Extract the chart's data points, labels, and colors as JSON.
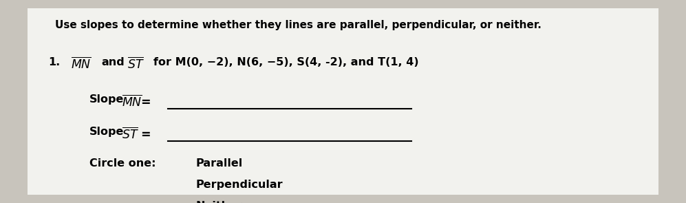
{
  "bg_color": "#c8c4bc",
  "paper_color": "#f2f2ee",
  "title": "Use slopes to determine whether they lines are parallel, perpendicular, or neither.",
  "problem_number": "1.",
  "problem_text_end": "for M(0, −2), N(6, −5), S(4, -2), and T(1, 4)",
  "options": [
    "Parallel",
    "Perpendicular",
    "Neither"
  ],
  "font_size_title": 11,
  "font_size_body": 11.5,
  "font_size_options": 11.5
}
